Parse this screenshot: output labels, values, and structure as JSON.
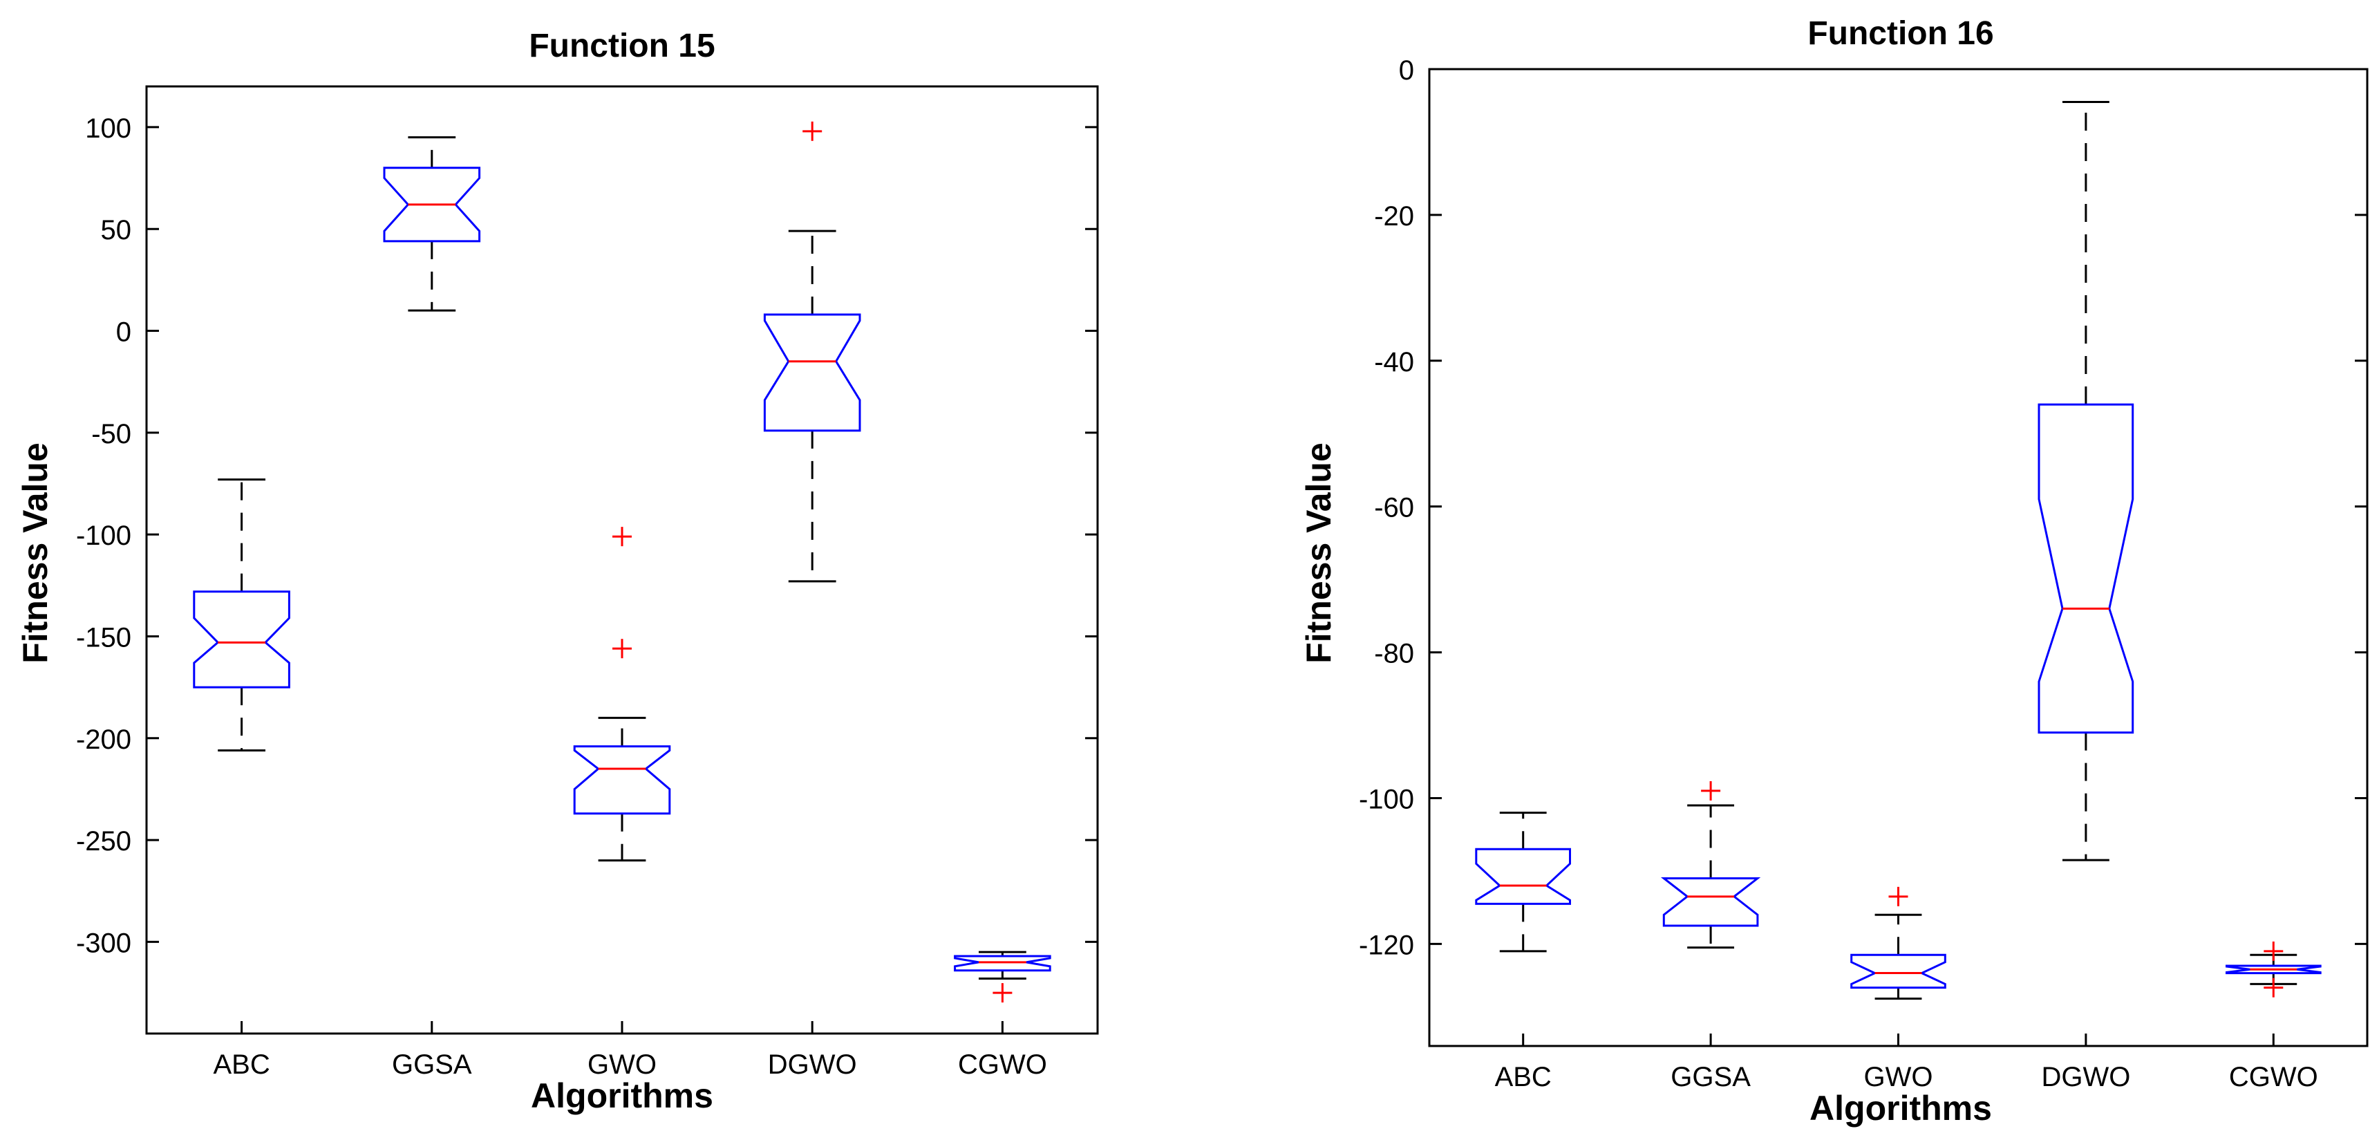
{
  "chart_data": [
    {
      "type": "boxplot",
      "title": "Function 15",
      "xlabel": "Algorithms",
      "ylabel": "Fitness Value",
      "categories": [
        "ABC",
        "GGSA",
        "GWO",
        "DGWO",
        "CGWO"
      ],
      "ylim": [
        -345,
        120
      ],
      "yticks": [
        100,
        50,
        0,
        -50,
        -100,
        -150,
        -200,
        -250,
        -300
      ],
      "boxes": [
        {
          "name": "ABC",
          "whisker_low": -206,
          "q1": -175,
          "median": -153,
          "q3": -128,
          "whisker_high": -73,
          "notch_low": -163,
          "notch_high": -141,
          "outliers": []
        },
        {
          "name": "GGSA",
          "whisker_low": 10,
          "q1": 44,
          "median": 62,
          "q3": 80,
          "whisker_high": 95,
          "notch_low": 49,
          "notch_high": 75,
          "outliers": []
        },
        {
          "name": "GWO",
          "whisker_low": -260,
          "q1": -237,
          "median": -215,
          "q3": -204,
          "whisker_high": -190,
          "notch_low": -225,
          "notch_high": -206,
          "outliers": [
            -101,
            -156
          ]
        },
        {
          "name": "DGWO",
          "whisker_low": -123,
          "q1": -49,
          "median": -15,
          "q3": 8,
          "whisker_high": 49,
          "notch_low": -34,
          "notch_high": 5,
          "outliers": [
            98
          ]
        },
        {
          "name": "CGWO",
          "whisker_low": -318,
          "q1": -314,
          "median": -310,
          "q3": -307,
          "whisker_high": -305,
          "notch_low": -312,
          "notch_high": -308,
          "outliers": [
            -325
          ]
        }
      ]
    },
    {
      "type": "boxplot",
      "title": "Function 16",
      "xlabel": "Algorithms",
      "ylabel": "Fitness Value",
      "categories": [
        "ABC",
        "GGSA",
        "GWO",
        "DGWO",
        "CGWO"
      ],
      "ylim": [
        -134,
        0
      ],
      "yticks": [
        0,
        -20,
        -40,
        -60,
        -80,
        -100,
        -120
      ],
      "boxes": [
        {
          "name": "ABC",
          "whisker_low": -121,
          "q1": -114.5,
          "median": -112,
          "q3": -107,
          "whisker_high": -102,
          "notch_low": -114,
          "notch_high": -109,
          "outliers": []
        },
        {
          "name": "GGSA",
          "whisker_low": -120.5,
          "q1": -117.5,
          "median": -113.5,
          "q3": -111,
          "whisker_high": -101,
          "notch_low": -116,
          "notch_high": -111,
          "outliers": [
            -99
          ]
        },
        {
          "name": "GWO",
          "whisker_low": -127.5,
          "q1": -126,
          "median": -124,
          "q3": -121.5,
          "whisker_high": -116,
          "notch_low": -125.5,
          "notch_high": -122.5,
          "outliers": [
            -113.5
          ]
        },
        {
          "name": "DGWO",
          "whisker_low": -108.5,
          "q1": -91,
          "median": -74,
          "q3": -46,
          "whisker_high": -4.5,
          "notch_low": -84,
          "notch_high": -59,
          "outliers": []
        },
        {
          "name": "CGWO",
          "whisker_low": -125.5,
          "q1": -124,
          "median": -123.5,
          "q3": -123,
          "whisker_high": -121.5,
          "notch_low": -123.9,
          "notch_high": -123.1,
          "outliers": [
            -121,
            -126
          ]
        }
      ]
    }
  ],
  "style": {
    "box_color": "#0000ff",
    "median_color": "#ff0000",
    "whisker_color": "#000000",
    "outlier_color": "#ff0000",
    "axis_color": "#000000"
  }
}
